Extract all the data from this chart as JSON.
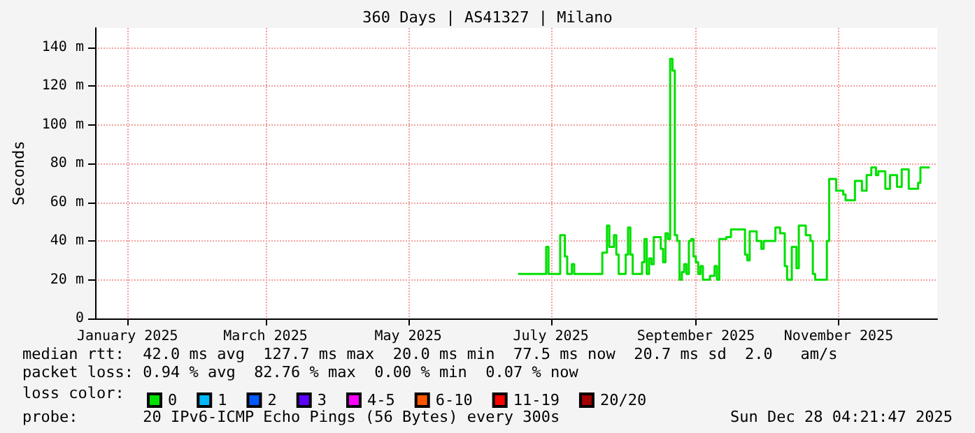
{
  "chart_data": {
    "type": "step",
    "title": "360 Days | AS41327 | Milano",
    "ylabel": "Seconds",
    "legend_title": "loss color:",
    "xlim": [
      "2025-01-02T04:21",
      "2025-12-28T04:21"
    ],
    "xticks": [
      {
        "value": "2025-01-16",
        "label": "January 2025"
      },
      {
        "value": "2025-03-16",
        "label": "March 2025"
      },
      {
        "value": "2025-05-16",
        "label": "May 2025"
      },
      {
        "value": "2025-07-16",
        "label": "July 2025"
      },
      {
        "value": "2025-09-16",
        "label": "September 2025"
      },
      {
        "value": "2025-11-16",
        "label": "November 2025"
      }
    ],
    "ylim": [
      0,
      150
    ],
    "yticks": [
      0,
      {
        "value": 20,
        "label": "20 m"
      },
      {
        "value": 40,
        "label": "40 m"
      },
      {
        "value": 60,
        "label": "60 m"
      },
      {
        "value": 80,
        "label": "80 m"
      },
      {
        "value": 100,
        "label": "100 m"
      },
      {
        "value": 120,
        "label": "120 m"
      },
      {
        "value": 140,
        "label": "140 m"
      }
    ],
    "x": [
      "2025-07-02",
      "2025-07-13",
      "2025-07-14",
      "2025-07-15",
      "2025-07-20",
      "2025-07-22",
      "2025-07-23",
      "2025-07-25",
      "2025-07-26",
      "2025-08-07",
      "2025-08-09",
      "2025-08-10",
      "2025-08-12",
      "2025-08-13",
      "2025-08-14",
      "2025-08-17",
      "2025-08-18",
      "2025-08-19",
      "2025-08-20",
      "2025-08-24",
      "2025-08-25",
      "2025-08-26",
      "2025-08-27",
      "2025-08-28",
      "2025-08-29",
      "2025-09-01",
      "2025-09-02",
      "2025-09-03",
      "2025-09-04",
      "2025-09-05",
      "2025-09-06",
      "2025-09-07",
      "2025-09-08",
      "2025-09-09",
      "2025-09-10",
      "2025-09-11",
      "2025-09-12",
      "2025-09-13",
      "2025-09-14",
      "2025-09-15",
      "2025-09-16",
      "2025-09-17",
      "2025-09-18",
      "2025-09-19",
      "2025-09-22",
      "2025-09-24",
      "2025-09-25",
      "2025-09-26",
      "2025-09-29",
      "2025-10-01",
      "2025-10-06",
      "2025-10-07",
      "2025-10-08",
      "2025-10-09",
      "2025-10-12",
      "2025-10-14",
      "2025-10-15",
      "2025-10-20",
      "2025-10-22",
      "2025-10-24",
      "2025-10-25",
      "2025-10-27",
      "2025-10-29",
      "2025-10-30",
      "2025-11-02",
      "2025-11-04",
      "2025-11-05",
      "2025-11-06",
      "2025-11-10",
      "2025-11-11",
      "2025-11-12",
      "2025-11-14",
      "2025-11-15",
      "2025-11-18",
      "2025-11-19",
      "2025-11-23",
      "2025-11-26",
      "2025-11-28",
      "2025-11-30",
      "2025-12-02",
      "2025-12-03",
      "2025-12-06",
      "2025-12-08",
      "2025-12-11",
      "2025-12-13",
      "2025-12-16",
      "2025-12-20",
      "2025-12-21",
      "2025-12-25"
    ],
    "series": [
      {
        "name": "0",
        "color": "#00e000",
        "values": [
          23,
          23,
          37,
          23,
          43,
          32,
          23,
          28,
          23,
          34,
          48,
          37,
          43,
          33,
          23,
          33,
          47,
          33,
          23,
          29,
          41,
          23,
          31,
          28,
          42,
          36,
          29,
          44,
          41,
          134,
          128,
          43,
          40,
          20,
          24,
          28,
          23,
          40,
          41,
          32,
          29,
          23,
          27,
          20,
          22,
          27,
          20,
          41,
          42,
          46,
          46,
          33,
          30,
          45,
          40,
          36,
          40,
          47,
          44,
          27,
          20,
          37,
          26,
          48,
          43,
          40,
          23,
          20,
          20,
          40,
          72,
          72,
          66,
          64,
          61,
          71,
          66,
          74,
          78,
          74,
          76,
          67,
          74,
          68,
          77,
          67,
          70,
          78,
          78
        ]
      },
      {
        "name": "1",
        "color": "#00b8ff",
        "values": [
          null,
          null,
          null,
          null,
          null,
          null,
          null,
          null,
          null,
          null,
          null,
          null,
          null,
          null,
          null,
          null,
          null,
          null,
          null,
          null,
          null,
          null,
          null,
          null,
          null,
          null,
          null,
          null,
          null,
          null,
          null,
          null,
          null,
          null,
          null,
          null,
          null,
          null,
          null,
          null,
          null,
          null,
          null,
          null,
          null,
          null,
          null,
          null,
          null,
          null,
          null,
          null,
          null,
          null,
          null,
          null,
          null,
          null,
          null,
          null,
          null,
          null,
          null,
          null,
          null,
          null,
          null,
          null,
          null,
          null,
          null,
          null,
          null,
          null,
          null,
          null,
          null,
          null,
          null,
          null,
          null,
          null,
          null,
          null,
          null,
          null,
          null,
          null,
          null
        ]
      },
      {
        "name": "2",
        "color": "#0059ff",
        "values": [
          null,
          null,
          null,
          null,
          null,
          null,
          null,
          null,
          null,
          null,
          null,
          null,
          null,
          null,
          null,
          null,
          null,
          null,
          null,
          null,
          null,
          null,
          null,
          null,
          null,
          null,
          null,
          null,
          null,
          null,
          null,
          null,
          null,
          null,
          null,
          null,
          null,
          null,
          null,
          null,
          null,
          null,
          null,
          null,
          null,
          null,
          null,
          null,
          null,
          null,
          null,
          null,
          null,
          null,
          null,
          null,
          null,
          null,
          null,
          null,
          null,
          null,
          null,
          null,
          null,
          null,
          null,
          null,
          null,
          null,
          null,
          null,
          null,
          null,
          null,
          null,
          null,
          null,
          null,
          null,
          null,
          null,
          null,
          null,
          null,
          null,
          null,
          null,
          null
        ]
      },
      {
        "name": "3",
        "color": "#5e00ff",
        "values": [
          null,
          null,
          null,
          null,
          null,
          null,
          null,
          null,
          null,
          null,
          null,
          null,
          null,
          null,
          null,
          null,
          null,
          null,
          null,
          null,
          null,
          null,
          null,
          null,
          null,
          null,
          null,
          null,
          null,
          null,
          null,
          null,
          null,
          null,
          null,
          null,
          null,
          null,
          null,
          null,
          null,
          null,
          null,
          null,
          null,
          null,
          null,
          null,
          null,
          null,
          null,
          null,
          null,
          null,
          null,
          null,
          null,
          null,
          null,
          null,
          null,
          null,
          null,
          null,
          null,
          null,
          null,
          null,
          null,
          null,
          null,
          null,
          null,
          null,
          null,
          null,
          null,
          null,
          null,
          null,
          null,
          null,
          null,
          null,
          null,
          null,
          null,
          null,
          null
        ]
      },
      {
        "name": "4-5",
        "color": "#ff00ff",
        "values": [
          null,
          null,
          null,
          null,
          null,
          null,
          null,
          null,
          null,
          null,
          null,
          null,
          null,
          null,
          null,
          null,
          null,
          null,
          null,
          null,
          null,
          null,
          null,
          null,
          null,
          null,
          null,
          null,
          null,
          null,
          null,
          null,
          null,
          null,
          null,
          null,
          null,
          null,
          null,
          null,
          null,
          null,
          null,
          null,
          null,
          null,
          null,
          null,
          null,
          null,
          null,
          null,
          null,
          null,
          null,
          null,
          null,
          null,
          null,
          null,
          null,
          null,
          null,
          null,
          null,
          null,
          null,
          null,
          null,
          null,
          null,
          null,
          null,
          null,
          null,
          null,
          null,
          null,
          null,
          null,
          null,
          null,
          null,
          null,
          null,
          null,
          null,
          null,
          null
        ]
      },
      {
        "name": "6-10",
        "color": "#ff5500",
        "values": [
          null,
          null,
          null,
          null,
          null,
          null,
          null,
          null,
          null,
          null,
          null,
          null,
          null,
          null,
          null,
          null,
          null,
          null,
          null,
          null,
          null,
          null,
          null,
          null,
          null,
          null,
          null,
          null,
          null,
          null,
          null,
          null,
          null,
          null,
          null,
          null,
          null,
          null,
          null,
          null,
          null,
          null,
          null,
          null,
          null,
          null,
          null,
          null,
          null,
          null,
          null,
          null,
          null,
          null,
          null,
          null,
          null,
          null,
          null,
          null,
          null,
          null,
          null,
          null,
          null,
          null,
          null,
          null,
          null,
          null,
          null,
          null,
          null,
          null,
          null,
          null,
          null,
          null,
          null,
          null,
          null,
          null,
          null,
          null,
          null,
          null,
          null,
          null,
          null
        ]
      },
      {
        "name": "11-19",
        "color": "#ff0000",
        "values": [
          null,
          null,
          null,
          null,
          null,
          null,
          null,
          null,
          null,
          null,
          null,
          null,
          null,
          null,
          null,
          null,
          null,
          null,
          null,
          null,
          null,
          null,
          null,
          null,
          null,
          null,
          null,
          null,
          null,
          null,
          null,
          null,
          null,
          null,
          null,
          null,
          null,
          null,
          null,
          null,
          null,
          null,
          null,
          null,
          null,
          null,
          null,
          null,
          null,
          null,
          null,
          null,
          null,
          null,
          null,
          null,
          null,
          null,
          null,
          null,
          null,
          null,
          null,
          null,
          null,
          null,
          null,
          null,
          null,
          null,
          null,
          null,
          null,
          null,
          null,
          null,
          null,
          null,
          null,
          null,
          null,
          null,
          null,
          null,
          null,
          null,
          null,
          null,
          null
        ]
      },
      {
        "name": "20/20",
        "color": "#a10000",
        "values": [
          null,
          null,
          null,
          null,
          null,
          null,
          null,
          null,
          null,
          null,
          null,
          null,
          null,
          null,
          null,
          null,
          null,
          null,
          null,
          null,
          null,
          null,
          null,
          null,
          null,
          null,
          null,
          null,
          null,
          null,
          null,
          null,
          null,
          null,
          null,
          null,
          null,
          null,
          null,
          null,
          null,
          null,
          null,
          null,
          null,
          null,
          null,
          null,
          null,
          null,
          null,
          null,
          null,
          null,
          null,
          null,
          null,
          null,
          null,
          null,
          null,
          null,
          null,
          null,
          null,
          null,
          null,
          null,
          null,
          null,
          null,
          null,
          null,
          null,
          null,
          null,
          null,
          null,
          null,
          null,
          null,
          null,
          null,
          null,
          null,
          null,
          null,
          null,
          null
        ]
      }
    ],
    "grid": true,
    "legend": "bottom",
    "annotations": [
      "median rtt:  42.0 ms avg  127.7 ms max  20.0 ms min  77.5 ms now  20.7 ms sd  2.0   am/s",
      "packet loss: 0.94 % avg  82.76 % max  0.00 % min  0.07 % now",
      "probe:       20 IPv6-ICMP Echo Pings (56 Bytes) every 300s",
      "Sun Dec 28 04:21:47 2025"
    ]
  }
}
